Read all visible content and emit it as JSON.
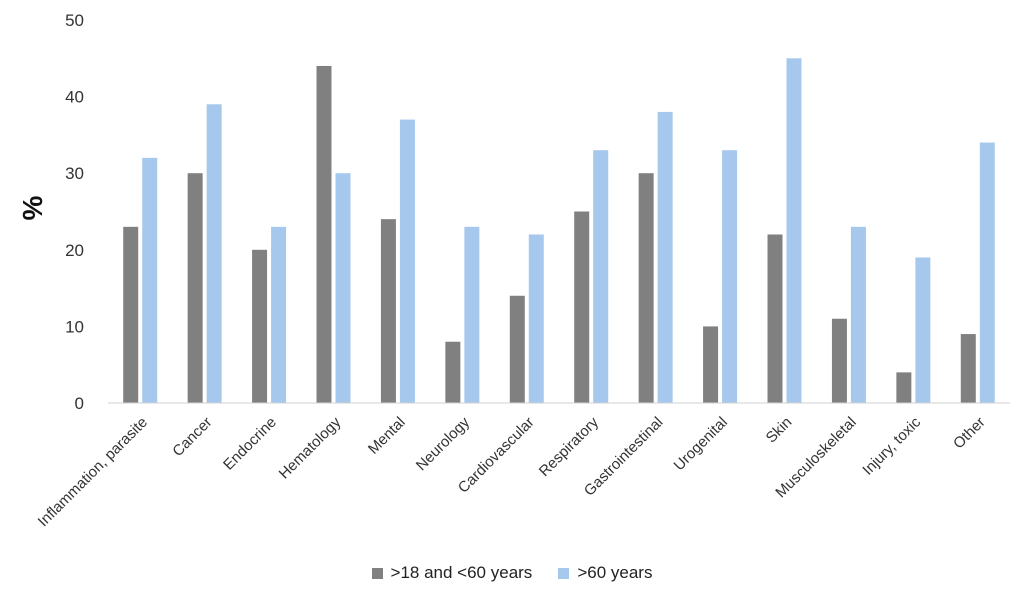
{
  "chart_data": {
    "type": "bar",
    "categories": [
      "Inflammation, parasite",
      "Cancer",
      "Endocrine",
      "Hematology",
      "Mental",
      "Neurology",
      "Cardiovascular",
      "Respiratory",
      "Gastrointestinal",
      "Urogenital",
      "Skin",
      "Musculoskeletal",
      "Injury, toxic",
      "Other"
    ],
    "series": [
      {
        "name": ">18 and <60 years",
        "color": "#808080",
        "values": [
          23,
          30,
          20,
          44,
          24,
          8,
          14,
          25,
          30,
          10,
          22,
          11,
          4,
          9
        ]
      },
      {
        "name": ">60 years",
        "color": "#a6c8ec",
        "values": [
          32,
          39,
          23,
          30,
          37,
          23,
          22,
          33,
          38,
          33,
          45,
          23,
          19,
          34
        ]
      }
    ],
    "ylabel": "%",
    "xlabel": "",
    "ylim": [
      0,
      50
    ],
    "yticks": [
      0,
      10,
      20,
      30,
      40,
      50
    ],
    "grid": false,
    "legend_position": "bottom"
  }
}
